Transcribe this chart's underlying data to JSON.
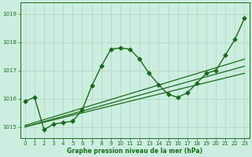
{
  "title": "Graphe pression niveau de la mer (hPa)",
  "background_color": "#cceee0",
  "grid_color": "#b0d4c0",
  "line_color": "#1a6b1a",
  "xlim": [
    -0.5,
    23.5
  ],
  "ylim": [
    1014.6,
    1019.4
  ],
  "yticks": [
    1015,
    1016,
    1017,
    1018,
    1019
  ],
  "xticks": [
    0,
    1,
    2,
    3,
    4,
    5,
    6,
    7,
    8,
    9,
    10,
    11,
    12,
    13,
    14,
    15,
    16,
    17,
    18,
    19,
    20,
    21,
    22,
    23
  ],
  "series": [
    {
      "x": [
        0,
        1,
        2,
        3,
        4,
        5,
        6,
        7,
        8,
        9,
        10,
        11,
        12,
        13,
        14,
        15,
        16,
        17,
        18,
        19,
        20,
        21,
        22,
        23
      ],
      "y": [
        1015.9,
        1016.05,
        1014.9,
        1015.1,
        1015.15,
        1015.2,
        1015.6,
        1016.45,
        1017.15,
        1017.75,
        1017.8,
        1017.75,
        1017.4,
        1016.9,
        1016.5,
        1016.15,
        1016.05,
        1016.2,
        1016.55,
        1016.9,
        1017.0,
        1017.55,
        1018.1,
        1018.85
      ],
      "marker": "D",
      "markersize": 2.5,
      "linewidth": 1.0
    },
    {
      "x": [
        0,
        23
      ],
      "y": [
        1015.05,
        1017.4
      ],
      "marker": null,
      "markersize": 0,
      "linewidth": 0.9
    },
    {
      "x": [
        0,
        23
      ],
      "y": [
        1015.0,
        1017.15
      ],
      "marker": null,
      "markersize": 0,
      "linewidth": 0.9
    },
    {
      "x": [
        0,
        23
      ],
      "y": [
        1015.0,
        1016.9
      ],
      "marker": null,
      "markersize": 0,
      "linewidth": 0.9
    }
  ]
}
